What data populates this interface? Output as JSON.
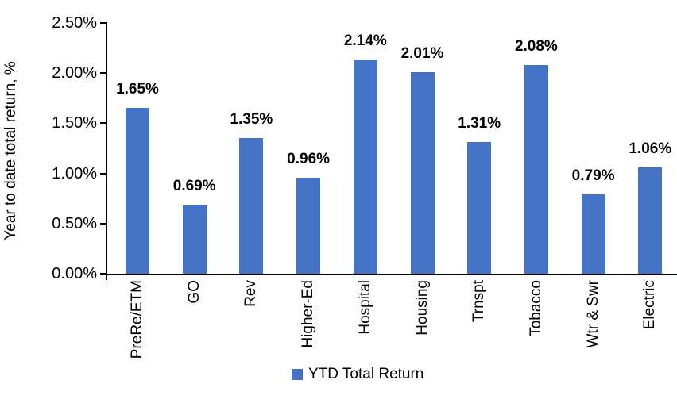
{
  "chart_data": {
    "type": "bar",
    "title": "",
    "xlabel": "",
    "ylabel": "Year to date total return, %",
    "categories": [
      "PreRe/ETM",
      "GO",
      "Rev",
      "Higher-Ed",
      "Hospital",
      "Housing",
      "Trnspt",
      "Tobacco",
      "Wtr & Swr",
      "Electric"
    ],
    "series": [
      {
        "name": "YTD Total Return",
        "values": [
          1.65,
          0.69,
          1.35,
          0.96,
          2.14,
          2.01,
          1.31,
          2.08,
          0.79,
          1.06
        ]
      }
    ],
    "value_labels": [
      "1.65%",
      "0.69%",
      "1.35%",
      "0.96%",
      "2.14%",
      "2.01%",
      "1.31%",
      "2.08%",
      "0.79%",
      "1.06%"
    ],
    "y_ticks": [
      "0.00%",
      "0.50%",
      "1.00%",
      "1.50%",
      "2.00%",
      "2.50%"
    ],
    "y_tick_values": [
      0,
      0.5,
      1,
      1.5,
      2,
      2.5
    ],
    "ylim": [
      0,
      2.5
    ],
    "bar_color": "#4472C4",
    "axis_color": "#000000",
    "text_color": "#000000",
    "grid": false,
    "legend": {
      "label": "YTD Total Return",
      "position": "bottom"
    }
  }
}
